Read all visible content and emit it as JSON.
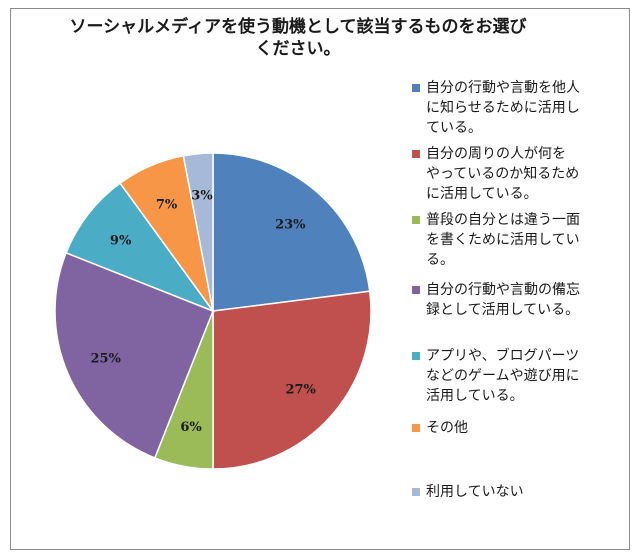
{
  "chart_data": {
    "type": "pie",
    "title": "ソーシャルメディアを使う動機として該当するものをお選び\nください。",
    "slices": [
      {
        "label": "自分の行動や言動を他人\nに知らせるために活用し\nている。",
        "value": 23,
        "display": "23%",
        "color": "#4f81bd"
      },
      {
        "label": "自分の周りの人が何を\nやっているのか知るため\nに活用している。",
        "value": 27,
        "display": "27%",
        "color": "#c0504d"
      },
      {
        "label": "普段の自分とは違う一面\nを書くために活用してい\nる。",
        "value": 6,
        "display": "6%",
        "color": "#9bbb59"
      },
      {
        "label": "自分の行動や言動の備忘\n録として活用している。",
        "value": 25,
        "display": "25%",
        "color": "#8064a2"
      },
      {
        "label": "アプリや、ブログパーツ\nなどのゲームや遊び用に\n活用している。",
        "value": 9,
        "display": "9%",
        "color": "#4bacc6"
      },
      {
        "label": "その他",
        "value": 7,
        "display": "7%",
        "color": "#f79646"
      },
      {
        "label": "利用していない",
        "value": 3,
        "display": "3%",
        "color": "#a6b9d9"
      }
    ],
    "legend_position": "right"
  }
}
